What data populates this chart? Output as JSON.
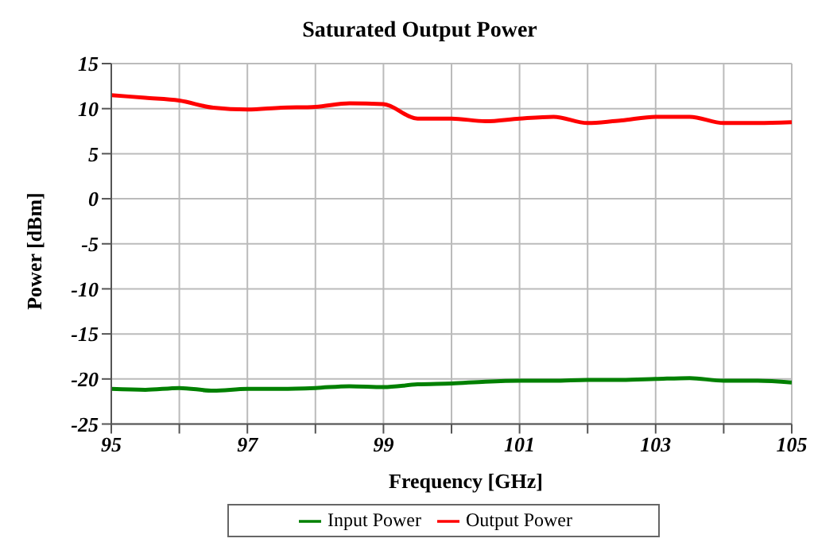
{
  "chart_data": {
    "type": "line",
    "title": "Saturated Output Power",
    "xlabel": "Frequency [GHz]",
    "ylabel": "Power [dBm]",
    "x": [
      95,
      95.5,
      96,
      96.5,
      97,
      97.5,
      98,
      98.5,
      99,
      99.5,
      100,
      100.5,
      101,
      101.5,
      102,
      102.5,
      103,
      103.5,
      104,
      104.5,
      105
    ],
    "series": [
      {
        "name": "Input Power",
        "color": "#008000",
        "values": [
          -21.1,
          -21.2,
          -21.0,
          -21.3,
          -21.1,
          -21.1,
          -21.0,
          -20.8,
          -20.9,
          -20.6,
          -20.5,
          -20.3,
          -20.2,
          -20.2,
          -20.1,
          -20.1,
          -20.0,
          -19.9,
          -20.2,
          -20.2,
          -20.4
        ]
      },
      {
        "name": "Output Power",
        "color": "#ff0000",
        "values": [
          11.5,
          11.2,
          10.9,
          10.1,
          9.9,
          10.1,
          10.2,
          10.6,
          10.5,
          8.9,
          8.9,
          8.6,
          8.9,
          9.1,
          8.4,
          8.7,
          9.1,
          9.1,
          8.4,
          8.4,
          8.5
        ]
      }
    ],
    "xlim": [
      95,
      105
    ],
    "xticks": [
      95,
      {
        "value": 96,
        "label": null
      },
      97,
      {
        "value": 98,
        "label": null
      },
      99,
      {
        "value": 100,
        "label": null
      },
      101,
      {
        "value": 102,
        "label": null
      },
      103,
      {
        "value": 104,
        "label": null
      },
      105
    ],
    "ylim": [
      -25,
      15
    ],
    "yticks": [
      -25,
      -20,
      -15,
      -10,
      -5,
      0,
      5,
      10,
      15
    ],
    "grid": true,
    "legend": "bottom",
    "marker": "none",
    "line_style": "solid"
  }
}
